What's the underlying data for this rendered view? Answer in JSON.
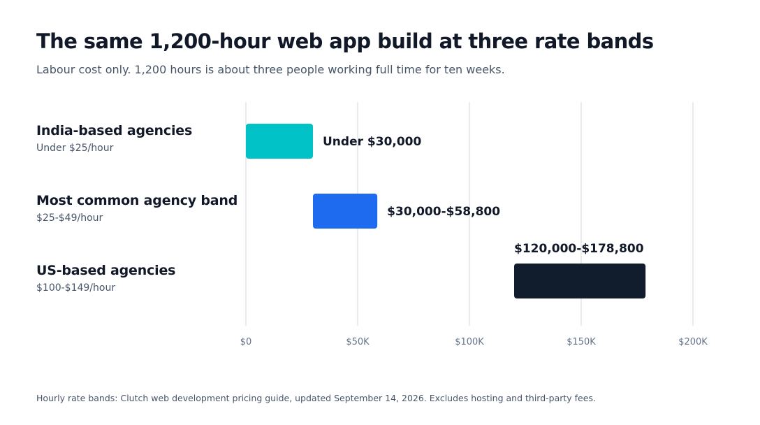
{
  "title": "The same 1,200-hour web app build at three rate bands",
  "subtitle": "Labour cost only. 1,200 hours is about three people working full time for ten weeks.",
  "rows": [
    {
      "name": "India-based agencies",
      "rate": "Under $25/hour"
    },
    {
      "name": "Most common agency band",
      "rate": "$25-$49/hour"
    },
    {
      "name": "US-based agencies",
      "rate": "$100-$149/hour"
    }
  ],
  "footnote": "Hourly rate bands: Clutch web development pricing guide, updated September 14, 2026. Excludes hosting and third-party fees.",
  "chart_data": {
    "type": "bar",
    "orientation": "horizontal-range",
    "title": "The same 1,200-hour web app build at three rate bands",
    "subtitle": "Labour cost only. 1,200 hours is about three people working full time for ten weeks.",
    "categories": [
      "India-based agencies",
      "Most common agency band",
      "US-based agencies"
    ],
    "ranges": [
      {
        "category": "India-based agencies",
        "start": 0,
        "end": 30000,
        "label": "Under $30,000",
        "color": "#00c2c7",
        "label_position": "right"
      },
      {
        "category": "Most common agency band",
        "start": 30000,
        "end": 58800,
        "label": "$30,000-$58,800",
        "color": "#1f6bf0",
        "label_position": "right"
      },
      {
        "category": "US-based agencies",
        "start": 120000,
        "end": 178800,
        "label": "$120,000-$178,800",
        "color": "#111c2d",
        "label_position": "above"
      }
    ],
    "xlim": [
      0,
      200000
    ],
    "xticks": [
      {
        "value": 0,
        "label": "$0"
      },
      {
        "value": 50000,
        "label": "$50K"
      },
      {
        "value": 100000,
        "label": "$100K"
      },
      {
        "value": 150000,
        "label": "$150K"
      },
      {
        "value": 200000,
        "label": "$200K"
      }
    ],
    "grid": true,
    "gridline_color": "#e9ebee"
  }
}
